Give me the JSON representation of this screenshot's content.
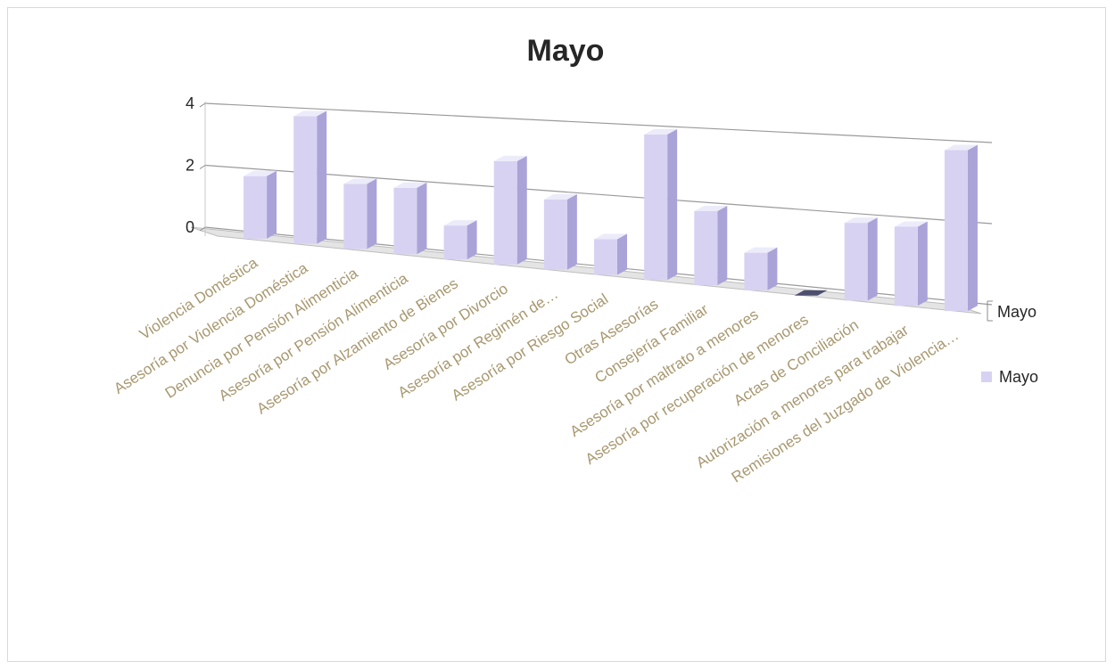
{
  "chart_data": {
    "type": "bar",
    "title": "Mayo",
    "categories": [
      "Violencia Doméstica",
      "Asesoría por Violencia Doméstica",
      "Denuncia por Pensión Alimenticia",
      "Asesoría por Pensión Alimenticia",
      "Asesoría por Alzamiento de Bienes",
      "Asesoría por Divorcio",
      "Asesoría por Regimén de…",
      "Asesoría por Riesgo Social",
      "Otras Asesorías",
      "Consejería Familiar",
      "Asesoría por maltrato a menores",
      "Asesoría por recuperación de menores",
      "Actas de Conciliación",
      "Autorización a menores para trabajar",
      "Remisiones del Juzgado de Violencia…"
    ],
    "series": [
      {
        "name": "Mayo",
        "values": [
          2,
          4,
          2,
          2,
          1,
          3,
          2,
          1,
          4,
          2,
          1,
          0,
          2,
          2,
          4
        ]
      }
    ],
    "yticks": [
      "0",
      "2",
      "4"
    ],
    "ylim": [
      0,
      4
    ],
    "series_axis_label": "Mayo",
    "legend": {
      "position": "right",
      "entries": [
        "Mayo"
      ]
    },
    "grid": true,
    "colors": {
      "bar_front": "#d7d2f2",
      "bar_side": "#aaa3d8",
      "bar_top": "#ecebfa",
      "zero_bar": "#4d4f6e",
      "floor": "#e4e4e4",
      "gridline": "#9a9a9a",
      "tick_label": "#a89870"
    }
  }
}
